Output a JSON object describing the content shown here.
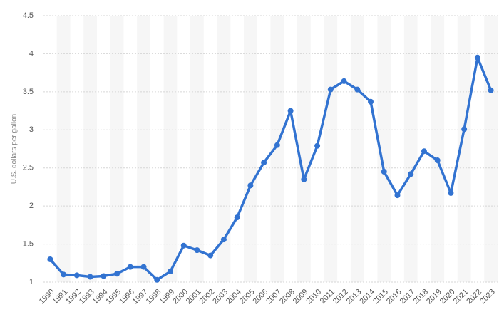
{
  "chart_data": {
    "type": "line",
    "y_label": "U.S. dollars per gallon",
    "categories": [
      "1990",
      "1991",
      "1992",
      "1993",
      "1994",
      "1995",
      "1996",
      "1997",
      "1998",
      "1999",
      "2000",
      "2001",
      "2002",
      "2003",
      "2004",
      "2005",
      "2006",
      "2007",
      "2008",
      "2009",
      "2010",
      "2011",
      "2012",
      "2013",
      "2014",
      "2015",
      "2016",
      "2017",
      "2018",
      "2019",
      "2020",
      "2021",
      "2022",
      "2023"
    ],
    "values": [
      1.3,
      1.1,
      1.09,
      1.07,
      1.08,
      1.11,
      1.2,
      1.2,
      1.03,
      1.14,
      1.48,
      1.42,
      1.35,
      1.56,
      1.85,
      2.27,
      2.57,
      2.8,
      3.25,
      2.35,
      2.79,
      3.53,
      3.64,
      3.53,
      3.37,
      2.45,
      2.14,
      2.42,
      2.72,
      2.6,
      2.17,
      3.01,
      3.95,
      3.52
    ],
    "color": "#3273d1",
    "ylim": [
      1,
      4.5
    ],
    "yticks": [
      1,
      1.5,
      2,
      2.5,
      3,
      3.5,
      4,
      4.5
    ],
    "grid": true
  }
}
